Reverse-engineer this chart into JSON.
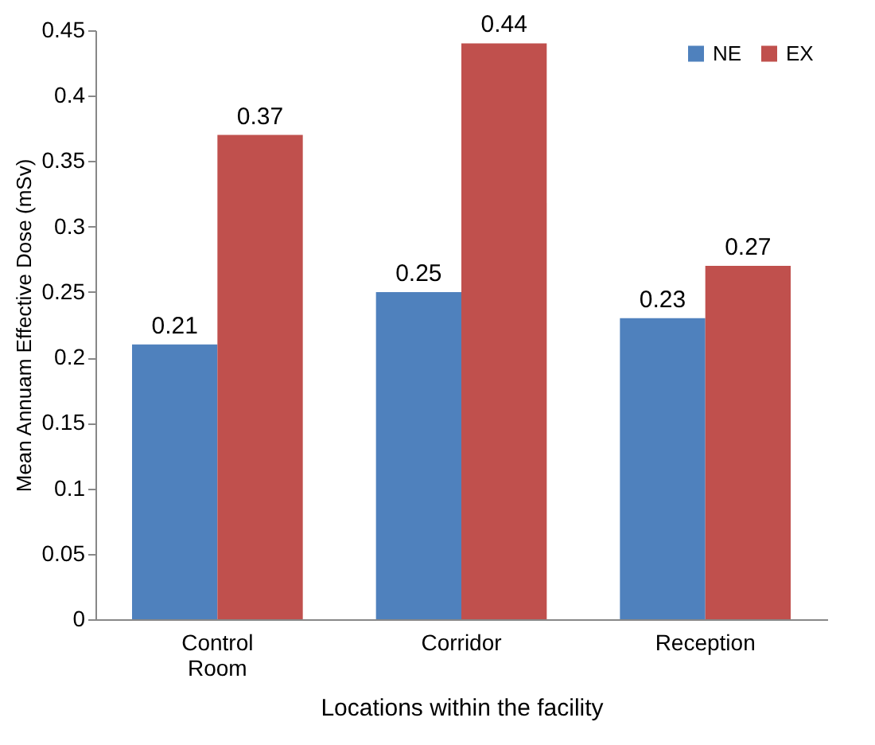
{
  "chart_data": {
    "type": "bar",
    "xlabel": "Locations within the facility",
    "ylabel": "Mean Annuam Effective Dose (mSv)",
    "categories": [
      "Control Room",
      "Corridor",
      "Reception"
    ],
    "series": [
      {
        "name": "NE",
        "color": "#4f81bd",
        "values": [
          0.21,
          0.25,
          0.23
        ]
      },
      {
        "name": "EX",
        "color": "#c0504d",
        "values": [
          0.37,
          0.44,
          0.27
        ]
      }
    ],
    "ylim": [
      0,
      0.45
    ],
    "yticks": [
      0,
      0.05,
      0.1,
      0.15,
      0.2,
      0.25,
      0.3,
      0.35,
      0.4,
      0.45
    ],
    "grid": false,
    "legend": "top right",
    "data_labels": true
  }
}
